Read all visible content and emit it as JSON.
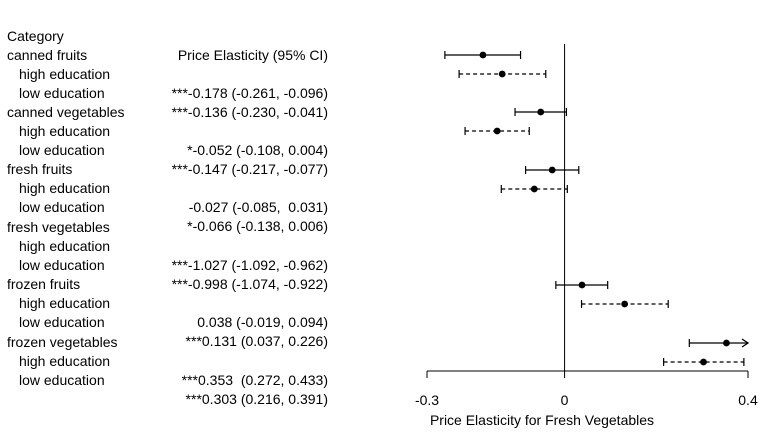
{
  "table": {
    "header_category": "Category",
    "header_value": "Price Elasticity (95% CI)",
    "groups": [
      {
        "name": "canned fruits",
        "rows": [
          {
            "label": "high education",
            "text": "***-0.178 (-0.261, -0.096)"
          },
          {
            "label": "low education",
            "text": "***-0.136 (-0.230, -0.041)"
          }
        ]
      },
      {
        "name": "canned vegetables",
        "rows": [
          {
            "label": "high education",
            "text": "*-0.052 (-0.108, 0.004)"
          },
          {
            "label": "low education",
            "text": "***-0.147 (-0.217, -0.077)"
          }
        ]
      },
      {
        "name": "fresh fruits",
        "rows": [
          {
            "label": "high education",
            "text": "-0.027 (-0.085,  0.031)"
          },
          {
            "label": "low education",
            "text": "*-0.066 (-0.138, 0.006)"
          }
        ]
      },
      {
        "name": "fresh vegetables",
        "rows": [
          {
            "label": "high education",
            "text": "***-1.027 (-1.092, -0.962)"
          },
          {
            "label": "low education",
            "text": "***-0.998 (-1.074, -0.922)"
          }
        ]
      },
      {
        "name": "frozen fruits",
        "rows": [
          {
            "label": "high education",
            "text": "0.038 (-0.019, 0.094)"
          },
          {
            "label": "low education",
            "text": "***0.131 (0.037, 0.226)"
          }
        ]
      },
      {
        "name": "frozen vegetables",
        "rows": [
          {
            "label": "high education",
            "text": "***0.353  (0.272, 0.433)"
          },
          {
            "label": "low education",
            "text": "***0.303 (0.216, 0.391)"
          }
        ]
      }
    ]
  },
  "chart_data": {
    "type": "forest",
    "xlabel": "Price Elasticity for Fresh Vegetables",
    "xlim": [
      -0.3,
      0.4
    ],
    "xticks": [
      -0.3,
      0,
      0.4
    ],
    "xtick_labels": [
      "-0.3",
      "0",
      "0.4"
    ],
    "reference_line": 0,
    "series_styles": {
      "high education": "solid",
      "low education": "dashed"
    },
    "points": [
      {
        "category": "canned fruits",
        "group": "high education",
        "estimate": -0.178,
        "lower": -0.261,
        "upper": -0.096
      },
      {
        "category": "canned fruits",
        "group": "low education",
        "estimate": -0.136,
        "lower": -0.23,
        "upper": -0.041
      },
      {
        "category": "canned vegetables",
        "group": "high education",
        "estimate": -0.052,
        "lower": -0.108,
        "upper": 0.004
      },
      {
        "category": "canned vegetables",
        "group": "low education",
        "estimate": -0.147,
        "lower": -0.217,
        "upper": -0.077
      },
      {
        "category": "fresh fruits",
        "group": "high education",
        "estimate": -0.027,
        "lower": -0.085,
        "upper": 0.031
      },
      {
        "category": "fresh fruits",
        "group": "low education",
        "estimate": -0.066,
        "lower": -0.138,
        "upper": 0.006
      },
      {
        "category": "fresh vegetables",
        "group": "high education",
        "estimate": null,
        "lower": null,
        "upper": null
      },
      {
        "category": "fresh vegetables",
        "group": "low education",
        "estimate": null,
        "lower": null,
        "upper": null
      },
      {
        "category": "frozen fruits",
        "group": "high education",
        "estimate": 0.038,
        "lower": -0.019,
        "upper": 0.094
      },
      {
        "category": "frozen fruits",
        "group": "low education",
        "estimate": 0.131,
        "lower": 0.037,
        "upper": 0.226
      },
      {
        "category": "frozen vegetables",
        "group": "high education",
        "estimate": 0.353,
        "lower": 0.272,
        "upper": 0.433
      },
      {
        "category": "frozen vegetables",
        "group": "low education",
        "estimate": 0.303,
        "lower": 0.216,
        "upper": 0.391
      }
    ]
  }
}
